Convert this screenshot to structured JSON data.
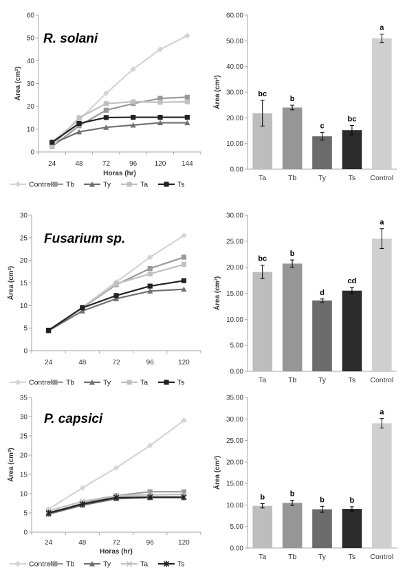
{
  "chart_data": [
    {
      "id": "rsolani-line",
      "type": "line",
      "title": "R. solani",
      "xlabel": "Horas (hr)",
      "ylabel": "Área (cm²)",
      "x": [
        "24",
        "48",
        "72",
        "96",
        "120",
        "144"
      ],
      "ylim": [
        0,
        60
      ],
      "yticks": [
        "0",
        "10",
        "20",
        "30",
        "40",
        "50",
        "60"
      ],
      "grid": false,
      "legend": "bottom",
      "series": [
        {
          "name": "Control",
          "values": [
            4.5,
            14.0,
            25.7,
            36.3,
            45.0,
            51.0
          ],
          "color": "#d4d4d4",
          "marker": "diamond"
        },
        {
          "name": "Tb",
          "values": [
            2.3,
            11.5,
            18.3,
            21.2,
            23.5,
            24.0
          ],
          "color": "#999999",
          "marker": "square"
        },
        {
          "name": "Ty",
          "values": [
            3.5,
            8.8,
            10.8,
            11.8,
            12.8,
            12.8
          ],
          "color": "#707070",
          "marker": "triangle"
        },
        {
          "name": "Ta",
          "values": [
            2.5,
            15.0,
            21.2,
            22.0,
            21.8,
            22.0
          ],
          "color": "#c0c0c0",
          "marker": "square"
        },
        {
          "name": "Ts",
          "values": [
            4.2,
            12.5,
            15.1,
            15.2,
            15.2,
            15.2
          ],
          "color": "#222222",
          "marker": "square"
        }
      ]
    },
    {
      "id": "rsolani-bar",
      "type": "bar",
      "ylabel": "Área (cm²)",
      "categories": [
        "Ta",
        "Tb",
        "Ty",
        "Ts",
        "Control"
      ],
      "values": [
        21.8,
        24.0,
        12.8,
        15.2,
        51.0
      ],
      "errors": [
        5.0,
        0.9,
        1.5,
        1.8,
        1.6
      ],
      "letters": [
        "bc",
        "b",
        "c",
        "bc",
        "a"
      ],
      "colors": [
        "#bdbdbd",
        "#969696",
        "#6b6b6b",
        "#2b2b2b",
        "#cfcfcf"
      ],
      "ylim": [
        0,
        60
      ],
      "yticks": [
        "0.00",
        "10.00",
        "20.00",
        "30.00",
        "40.00",
        "50.00",
        "60.00"
      ]
    },
    {
      "id": "fusarium-line",
      "type": "line",
      "title": "Fusarium sp.",
      "xlabel": "Horas (hr)",
      "ylabel": "Área (cm²)",
      "x": [
        "24",
        "48",
        "72",
        "96",
        "120"
      ],
      "ylim": [
        0,
        30
      ],
      "yticks": [
        "0",
        "5",
        "10",
        "15",
        "20",
        "25",
        "30"
      ],
      "grid": false,
      "legend": "bottom",
      "series": [
        {
          "name": "Control",
          "values": [
            4.5,
            9.6,
            15.2,
            20.7,
            25.5
          ],
          "color": "#d4d4d4",
          "marker": "diamond"
        },
        {
          "name": "Tb",
          "values": [
            4.5,
            9.5,
            14.6,
            18.2,
            20.7
          ],
          "color": "#999999",
          "marker": "square"
        },
        {
          "name": "Ty",
          "values": [
            4.4,
            8.8,
            11.5,
            13.2,
            13.6
          ],
          "color": "#707070",
          "marker": "triangle"
        },
        {
          "name": "Ta",
          "values": [
            4.5,
            9.6,
            14.8,
            17.0,
            19.1
          ],
          "color": "#c0c0c0",
          "marker": "square"
        },
        {
          "name": "Ts",
          "values": [
            4.5,
            9.5,
            12.2,
            14.3,
            15.5
          ],
          "color": "#222222",
          "marker": "square"
        }
      ]
    },
    {
      "id": "fusarium-bar",
      "type": "bar",
      "ylabel": "Área (cm²)",
      "categories": [
        "Ta",
        "Tb",
        "Ty",
        "Ts",
        "Control"
      ],
      "values": [
        19.1,
        20.7,
        13.6,
        15.5,
        25.5
      ],
      "errors": [
        1.3,
        0.7,
        0.3,
        0.6,
        1.9
      ],
      "letters": [
        "bc",
        "b",
        "d",
        "cd",
        "a"
      ],
      "colors": [
        "#bdbdbd",
        "#969696",
        "#6b6b6b",
        "#2b2b2b",
        "#cfcfcf"
      ],
      "ylim": [
        0,
        30
      ],
      "yticks": [
        "0.00",
        "5.00",
        "10.00",
        "15.00",
        "20.00",
        "25.00",
        "30.00"
      ]
    },
    {
      "id": "pcapsici-line",
      "type": "line",
      "title": "P. capsici",
      "xlabel": "Horas (hr)",
      "ylabel": "Área (cm²)",
      "x": [
        "24",
        "48",
        "72",
        "96",
        "120"
      ],
      "ylim": [
        0,
        35
      ],
      "yticks": [
        "0",
        "5",
        "10",
        "15",
        "20",
        "25",
        "30",
        "35"
      ],
      "grid": false,
      "legend": "bottom",
      "series": [
        {
          "name": "Control",
          "values": [
            6.0,
            11.5,
            16.7,
            22.5,
            29.0
          ],
          "color": "#d4d4d4",
          "marker": "diamond"
        },
        {
          "name": "Tb",
          "values": [
            4.8,
            7.5,
            9.5,
            10.5,
            10.5
          ],
          "color": "#999999",
          "marker": "square"
        },
        {
          "name": "Ty",
          "values": [
            4.7,
            7.0,
            8.7,
            9.0,
            9.0
          ],
          "color": "#707070",
          "marker": "triangle"
        },
        {
          "name": "Ta",
          "values": [
            5.5,
            8.0,
            9.5,
            9.7,
            9.8
          ],
          "color": "#c0c0c0",
          "marker": "x"
        },
        {
          "name": "Ts",
          "values": [
            5.0,
            7.3,
            9.0,
            9.1,
            9.1
          ],
          "color": "#222222",
          "marker": "star"
        }
      ]
    },
    {
      "id": "pcapsici-bar",
      "type": "bar",
      "ylabel": "Área (cm²)",
      "categories": [
        "Ta",
        "Tb",
        "Ty",
        "Ts",
        "Control"
      ],
      "values": [
        9.8,
        10.5,
        9.0,
        9.1,
        29.0
      ],
      "errors": [
        0.5,
        0.6,
        0.7,
        0.5,
        1.1
      ],
      "letters": [
        "b",
        "b",
        "b",
        "b",
        "a"
      ],
      "colors": [
        "#bdbdbd",
        "#969696",
        "#6b6b6b",
        "#2b2b2b",
        "#cfcfcf"
      ],
      "ylim": [
        0,
        35
      ],
      "yticks": [
        "0.00",
        "5.00",
        "10.00",
        "15.00",
        "20.00",
        "25.00",
        "30.00",
        "35.00"
      ]
    }
  ]
}
